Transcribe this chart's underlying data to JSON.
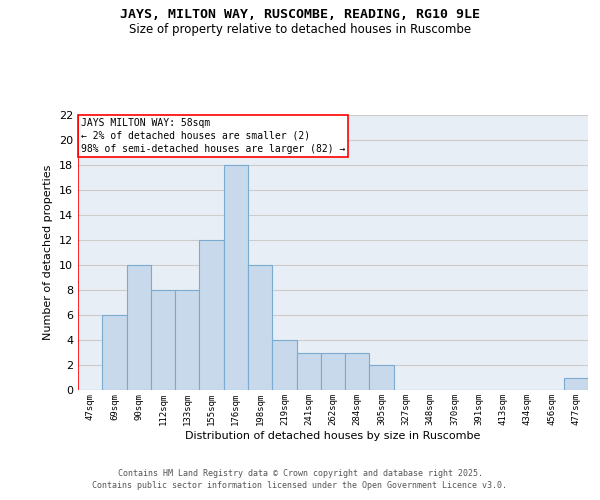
{
  "title_line1": "JAYS, MILTON WAY, RUSCOMBE, READING, RG10 9LE",
  "title_line2": "Size of property relative to detached houses in Ruscombe",
  "xlabel": "Distribution of detached houses by size in Ruscombe",
  "ylabel": "Number of detached properties",
  "categories": [
    "47sqm",
    "69sqm",
    "90sqm",
    "112sqm",
    "133sqm",
    "155sqm",
    "176sqm",
    "198sqm",
    "219sqm",
    "241sqm",
    "262sqm",
    "284sqm",
    "305sqm",
    "327sqm",
    "348sqm",
    "370sqm",
    "391sqm",
    "413sqm",
    "434sqm",
    "456sqm",
    "477sqm"
  ],
  "values": [
    0,
    6,
    10,
    8,
    8,
    12,
    18,
    10,
    4,
    3,
    3,
    3,
    2,
    0,
    0,
    0,
    0,
    0,
    0,
    0,
    1
  ],
  "bar_color": "#c8d9ec",
  "bar_edge_color": "#7aaad0",
  "annotation_box_text": "JAYS MILTON WAY: 58sqm\n← 2% of detached houses are smaller (2)\n98% of semi-detached houses are larger (82) →",
  "ylim": [
    0,
    22
  ],
  "yticks": [
    0,
    2,
    4,
    6,
    8,
    10,
    12,
    14,
    16,
    18,
    20,
    22
  ],
  "grid_color": "#cccccc",
  "bg_color": "#e8eef5",
  "footer_line1": "Contains HM Land Registry data © Crown copyright and database right 2025.",
  "footer_line2": "Contains public sector information licensed under the Open Government Licence v3.0."
}
